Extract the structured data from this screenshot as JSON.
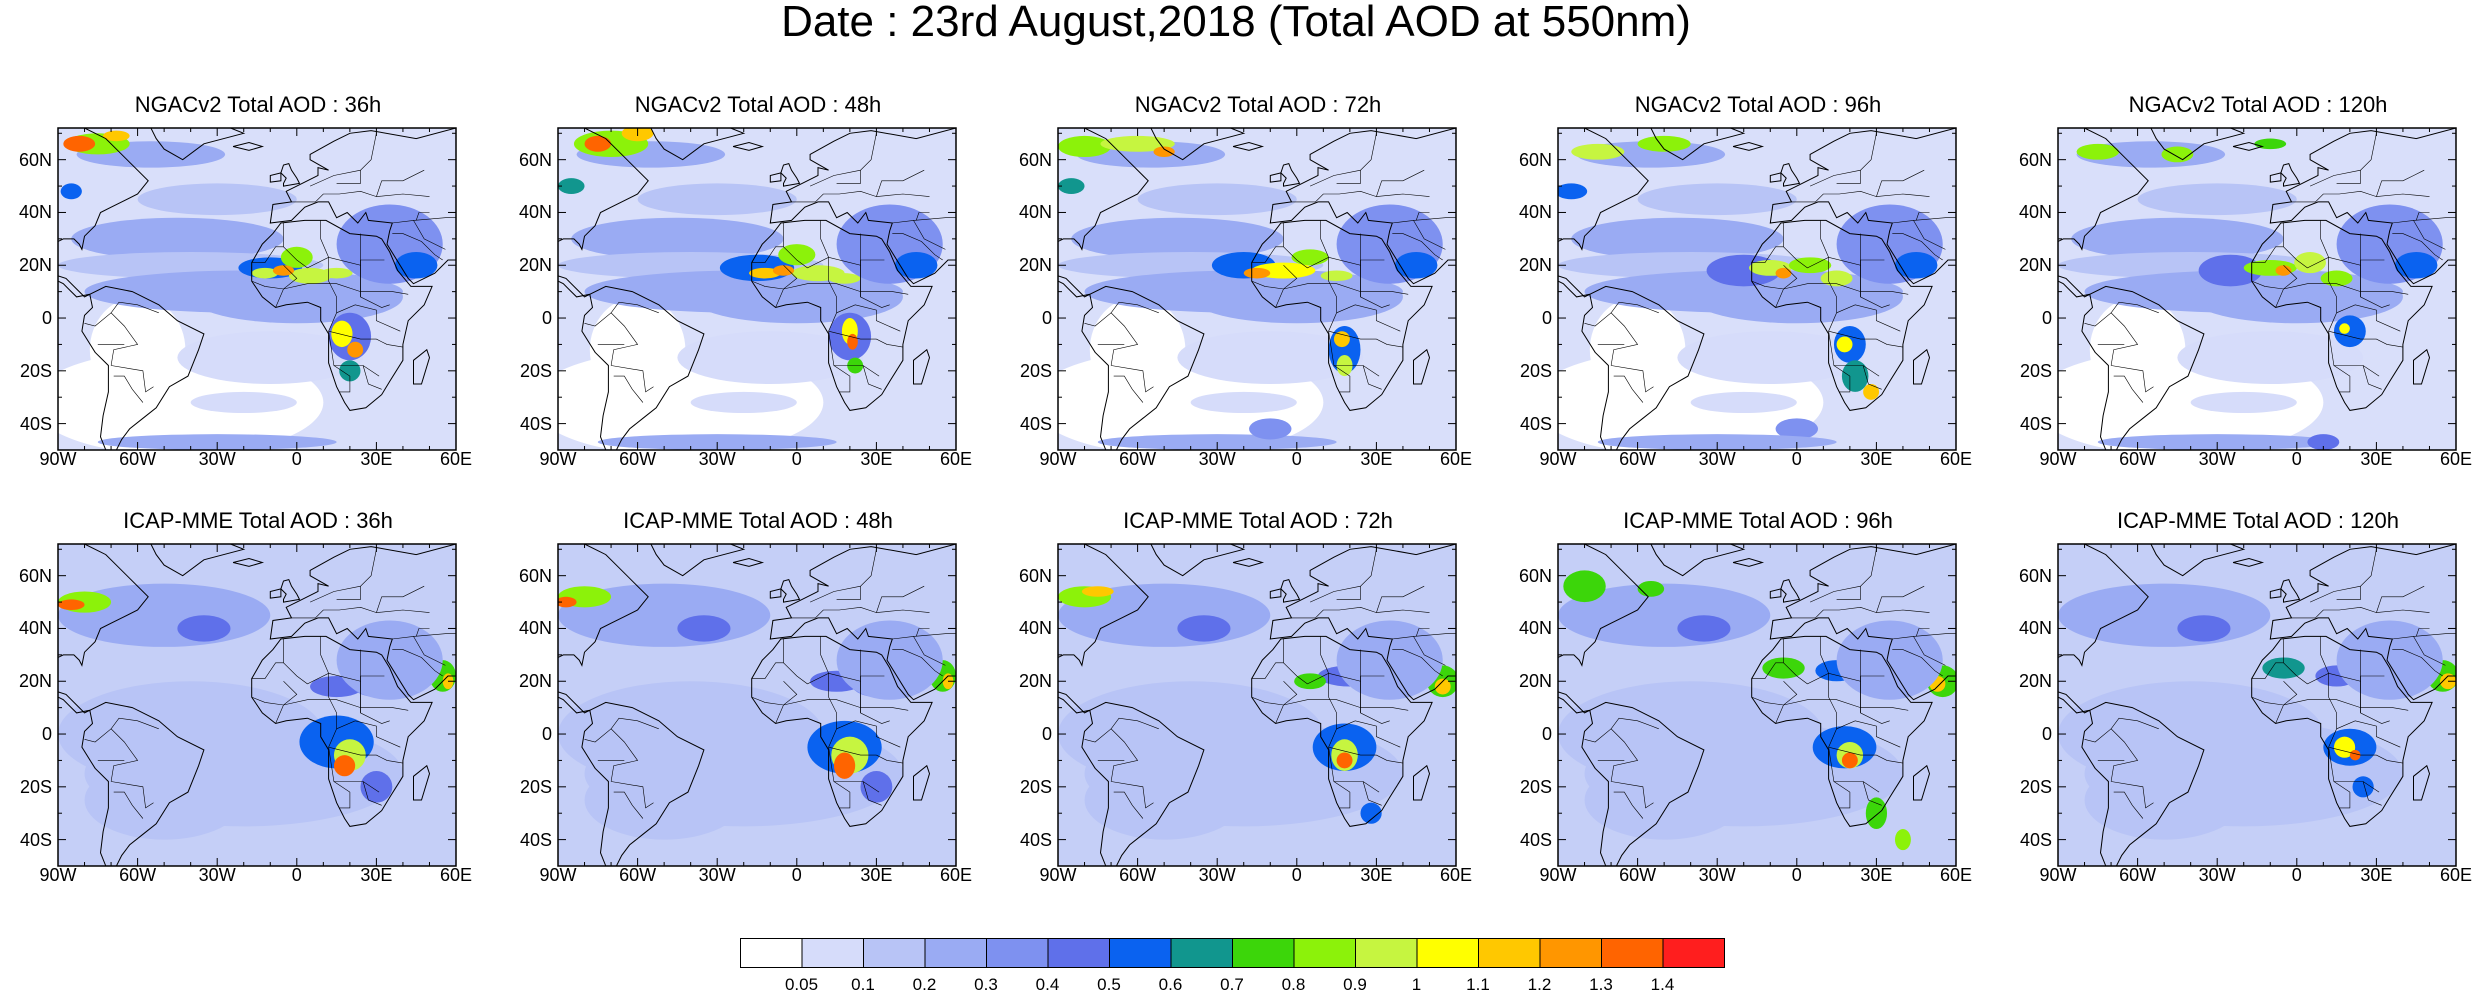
{
  "title": "Date : 23rd August,2018 (Total AOD at 550nm)",
  "latitude_ticks": [
    "60N",
    "40N",
    "20N",
    "0",
    "20S",
    "40S"
  ],
  "longitude_ticks": [
    "90W",
    "60W",
    "30W",
    "0",
    "30E",
    "60E"
  ],
  "map_extent": {
    "lon_min": -90,
    "lon_max": 60,
    "lat_min": -50,
    "lat_max": 72
  },
  "rows": [
    {
      "model": "NGACv2",
      "panels": [
        {
          "title": "NGACv2 Total AOD : 36h",
          "lead_time_h": 36
        },
        {
          "title": "NGACv2 Total AOD : 48h",
          "lead_time_h": 48
        },
        {
          "title": "NGACv2 Total AOD : 72h",
          "lead_time_h": 72
        },
        {
          "title": "NGACv2 Total AOD : 96h",
          "lead_time_h": 96
        },
        {
          "title": "NGACv2 Total AOD : 120h",
          "lead_time_h": 120
        }
      ]
    },
    {
      "model": "ICAP-MME",
      "panels": [
        {
          "title": "ICAP-MME Total AOD : 36h",
          "lead_time_h": 36
        },
        {
          "title": "ICAP-MME Total AOD : 48h",
          "lead_time_h": 48
        },
        {
          "title": "ICAP-MME Total AOD : 72h",
          "lead_time_h": 72
        },
        {
          "title": "ICAP-MME Total AOD : 96h",
          "lead_time_h": 96
        },
        {
          "title": "ICAP-MME Total AOD : 120h",
          "lead_time_h": 120
        }
      ]
    }
  ],
  "colorbar": {
    "labels": [
      "0.05",
      "0.1",
      "0.2",
      "0.3",
      "0.4",
      "0.5",
      "0.6",
      "0.7",
      "0.8",
      "0.9",
      "1",
      "1.1",
      "1.2",
      "1.3",
      "1.4"
    ],
    "colors": [
      "#ffffff",
      "#d6dcfa",
      "#b8c4f6",
      "#9aabf3",
      "#7e91f0",
      "#5f70ea",
      "#0a62f0",
      "#11968e",
      "#3cd60a",
      "#8cf20a",
      "#c6f540",
      "#ffff00",
      "#ffc800",
      "#ff9600",
      "#ff6400",
      "#ff1e1e"
    ]
  }
}
